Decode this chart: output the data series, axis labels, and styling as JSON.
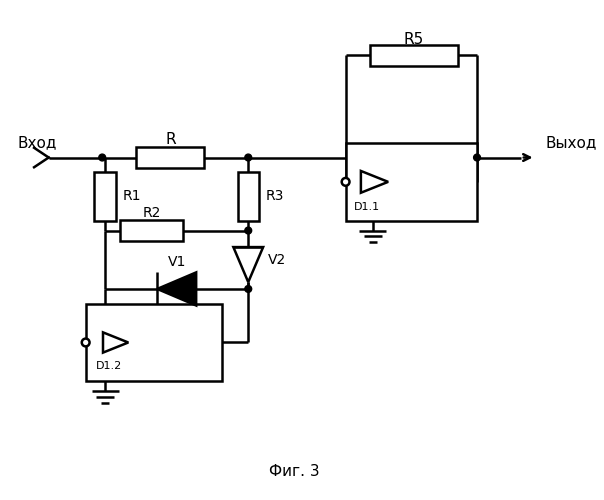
{
  "background_color": "#ffffff",
  "line_color": "#000000",
  "text_color": "#000000",
  "figsize": [
    6.04,
    5.0
  ],
  "dpi": 100,
  "labels": {
    "input": "Вход",
    "output": "Выход",
    "R": "R",
    "R1": "R1",
    "R2": "R2",
    "R3": "R3",
    "R5": "R5",
    "V1": "V1",
    "V2": "V2",
    "D11": "D1.1",
    "D12": "D1.2",
    "fig": "Фиг. 3"
  }
}
